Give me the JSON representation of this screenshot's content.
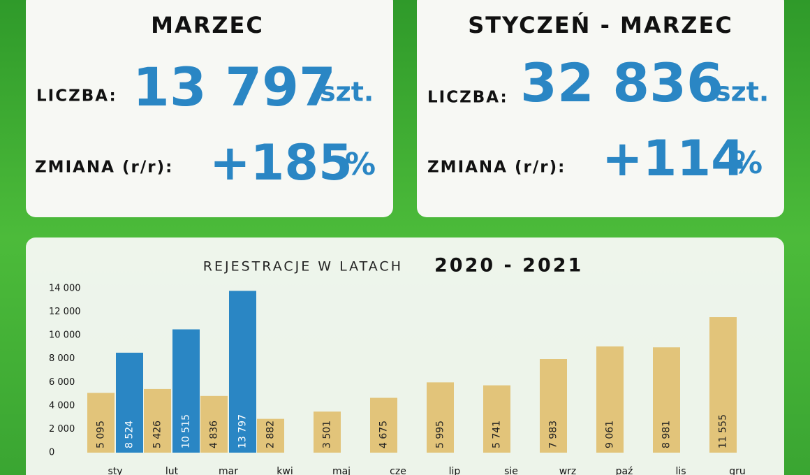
{
  "cards": [
    {
      "heading": "MARZEC",
      "count_label": "LICZBA:",
      "count": "13 797",
      "count_unit": "szt.",
      "change_label": "ZMIANA (r/r):",
      "change": "+185",
      "change_unit": "%"
    },
    {
      "heading": "STYCZEŃ - MARZEC",
      "count_label": "LICZBA:",
      "count": "32 836",
      "count_unit": "szt.",
      "change_label": "ZMIANA (r/r):",
      "change": "+114",
      "change_unit": "%"
    }
  ],
  "chart_data": {
    "type": "bar",
    "title": "REJESTRACJE W LATACH",
    "title_emphasis": "2020 - 2021",
    "categories": [
      "sty",
      "lut",
      "mar",
      "kwi",
      "maj",
      "cze",
      "lip",
      "sie",
      "wrz",
      "paź",
      "lis",
      "gru"
    ],
    "series": [
      {
        "color": "#e2c47a",
        "values": [
          5095,
          5426,
          4836,
          2882,
          3501,
          4675,
          5995,
          5741,
          7983,
          9061,
          8981,
          11555
        ],
        "value_labels": [
          "5 095",
          "5 426",
          "4 836",
          "2 882",
          "3 501",
          "4 675",
          "5 995",
          "5 741",
          "7 983",
          "9 061",
          "8 981",
          "11 555"
        ]
      },
      {
        "color": "#2a86c4",
        "values": [
          8524,
          10515,
          13797,
          null,
          null,
          null,
          null,
          null,
          null,
          null,
          null,
          null
        ],
        "value_labels": [
          "8 524",
          "10 515",
          "13 797",
          null,
          null,
          null,
          null,
          null,
          null,
          null,
          null,
          null
        ]
      }
    ],
    "ylim": [
      0,
      14000
    ],
    "yticks": [
      0,
      {
        "value": 2000,
        "label": "2 000"
      },
      {
        "value": 4000,
        "label": "4 000"
      },
      {
        "value": 6000,
        "label": "6 000"
      },
      {
        "value": 8000,
        "label": "8 000"
      },
      {
        "value": 10000,
        "label": "10 000"
      },
      {
        "value": 12000,
        "label": "12 000"
      },
      {
        "value": 14000,
        "label": "14 000"
      }
    ]
  }
}
